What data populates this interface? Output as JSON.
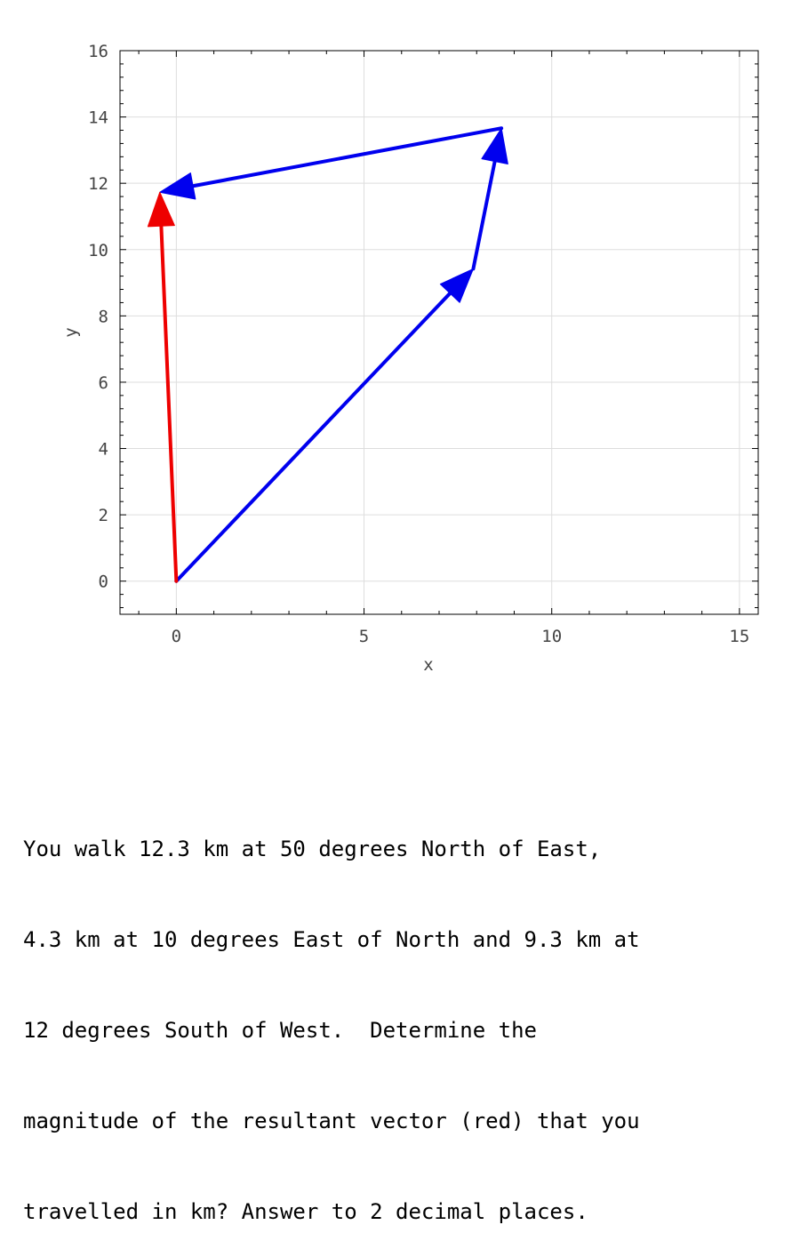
{
  "chart_data": {
    "type": "vector-diagram",
    "xlabel": "x",
    "ylabel": "y",
    "xlim": [
      -1.5,
      15.5
    ],
    "ylim": [
      -1,
      16
    ],
    "xticks": [
      0,
      5,
      10,
      15
    ],
    "yticks": [
      0,
      2,
      4,
      6,
      8,
      10,
      12,
      14,
      16
    ],
    "grid": true,
    "colors": {
      "path": "#0000ee",
      "resultant": "#ee0000",
      "grid": "#dddddd",
      "frame": "#000000"
    },
    "vectors": [
      {
        "role": "path",
        "color": "#0000ee",
        "from": [
          0,
          0
        ],
        "to": [
          7.91,
          9.42
        ]
      },
      {
        "role": "path",
        "color": "#0000ee",
        "from": [
          7.91,
          9.42
        ],
        "to": [
          8.66,
          13.66
        ]
      },
      {
        "role": "path",
        "color": "#0000ee",
        "from": [
          8.66,
          13.66
        ],
        "to": [
          -0.44,
          11.73
        ]
      },
      {
        "role": "resultant",
        "color": "#ee0000",
        "from": [
          0,
          0
        ],
        "to": [
          -0.44,
          11.73
        ]
      }
    ]
  },
  "question": {
    "lines": [
      "You walk 12.3 km at 50 degrees North of East,",
      "4.3 km at 10 degrees East of North and 9.3 km at",
      "12 degrees South of West.  Determine the",
      "magnitude of the resultant vector (red) that you",
      "travelled in km? Answer to 2 decimal places."
    ]
  }
}
